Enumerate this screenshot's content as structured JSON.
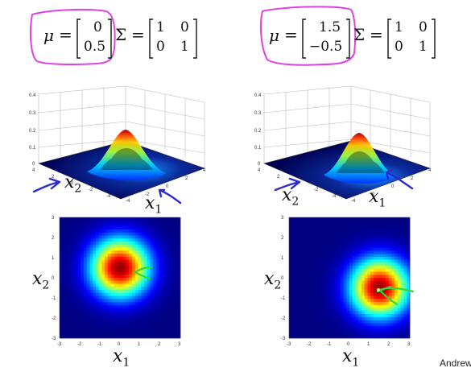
{
  "slide": {
    "left": {
      "mu_symbol": "μ",
      "equals": "=",
      "mu_values": [
        "0",
        "0.5"
      ],
      "sigma_symbol": "Σ",
      "sigma_values": [
        [
          "1",
          "0"
        ],
        [
          "0",
          "1"
        ]
      ],
      "surface_z_ticks": [
        "0",
        "0.1",
        "0.2",
        "0.3",
        "0.4"
      ],
      "surface_x1_ticks": [
        "-4",
        "-2",
        "0",
        "2",
        "4"
      ],
      "surface_x2_ticks": [
        "4",
        "2",
        "0",
        "-2",
        "-4"
      ],
      "heatmap_ticks": [
        "-3",
        "-2",
        "-1",
        "0",
        "1",
        "2",
        "3"
      ],
      "x1_label": "x",
      "x1_sub": "1",
      "x2_label": "x",
      "x2_sub": "2"
    },
    "right": {
      "mu_symbol": "μ",
      "equals": "=",
      "mu_values": [
        "1.5",
        "−0.5"
      ],
      "sigma_symbol": "Σ",
      "sigma_values": [
        [
          "1",
          "0"
        ],
        [
          "0",
          "1"
        ]
      ],
      "surface_z_ticks": [
        "0",
        "0.1",
        "0.2",
        "0.3",
        "0.4"
      ],
      "surface_x1_ticks": [
        "-4",
        "-2",
        "0",
        "2",
        "4"
      ],
      "surface_x2_ticks": [
        "4",
        "2",
        "0",
        "-2",
        "-4"
      ],
      "heatmap_ticks": [
        "-3",
        "-2",
        "-1",
        "0",
        "1",
        "2",
        "3"
      ],
      "x1_label": "x",
      "x1_sub": "1",
      "x2_label": "x",
      "x2_sub": "2"
    },
    "footer_name": "Andrew",
    "highlight_color": "#e040e0",
    "annotation_arrow_color": "#2a2ad0",
    "annotation_mark_color": "#36d636"
  },
  "chart_data": [
    {
      "type": "heatmap",
      "mu": [
        0,
        0.5
      ],
      "sigma": [
        [
          1,
          0
        ],
        [
          0,
          1
        ]
      ],
      "xlim": [
        -3,
        3
      ],
      "ylim": [
        -3,
        3
      ],
      "colormap": "jet"
    },
    {
      "type": "heatmap",
      "mu": [
        1.5,
        -0.5
      ],
      "sigma": [
        [
          1,
          0
        ],
        [
          0,
          1
        ]
      ],
      "xlim": [
        -3,
        3
      ],
      "ylim": [
        -3,
        3
      ],
      "colormap": "jet"
    }
  ]
}
